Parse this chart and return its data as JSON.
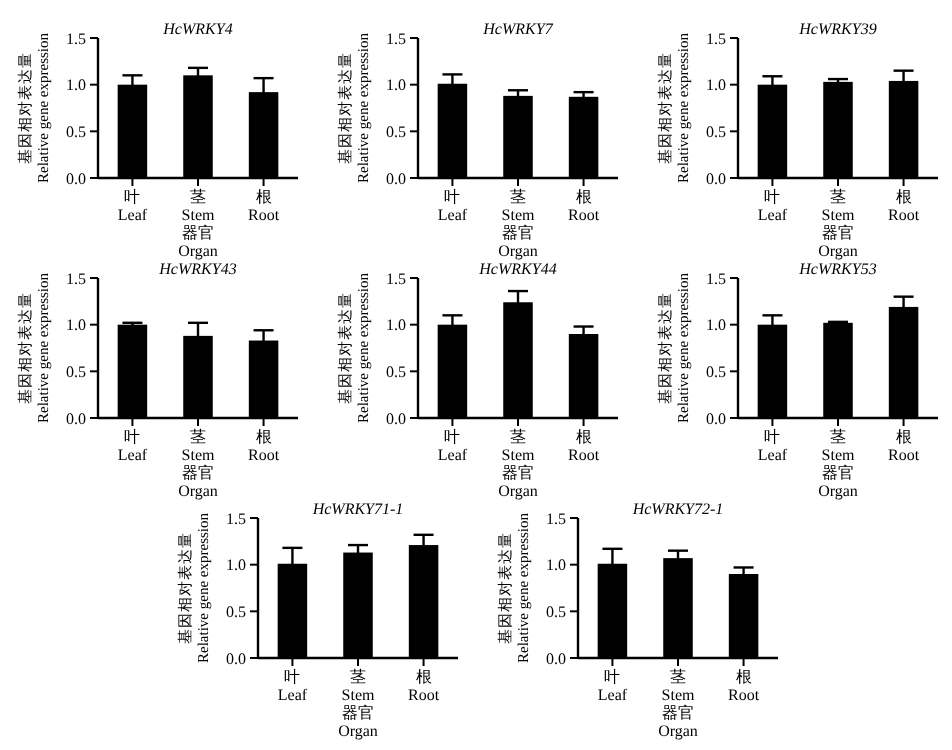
{
  "chart_data": [
    {
      "type": "bar",
      "title": "HcWRKY4",
      "categories": [
        "叶\nLeaf",
        "茎\nStem",
        "根\nRoot"
      ],
      "values": [
        1.0,
        1.1,
        0.92
      ],
      "errors": [
        0.1,
        0.08,
        0.15
      ],
      "color": "#000000",
      "xlabel": "器官\nOrgan",
      "ylabel": "基因相对表达量\nRelative gene expression",
      "ylim": [
        0,
        1.5
      ],
      "yticks": [
        {
          "value": 0,
          "label": "0.0"
        },
        {
          "value": 0.5,
          "label": "0.5"
        },
        {
          "value": 1,
          "label": "1.0"
        },
        {
          "value": 1.5,
          "label": "1.5"
        }
      ]
    },
    {
      "type": "bar",
      "title": "HcWRKY7",
      "categories": [
        "叶\nLeaf",
        "茎\nStem",
        "根\nRoot"
      ],
      "values": [
        1.01,
        0.88,
        0.87
      ],
      "errors": [
        0.1,
        0.06,
        0.05
      ],
      "color": "#000000",
      "xlabel": "器官\nOrgan",
      "ylabel": "基因相对表达量\nRelative gene expression",
      "ylim": [
        0,
        1.5
      ],
      "yticks": [
        {
          "value": 0,
          "label": "0.0"
        },
        {
          "value": 0.5,
          "label": "0.5"
        },
        {
          "value": 1,
          "label": "1.0"
        },
        {
          "value": 1.5,
          "label": "1.5"
        }
      ]
    },
    {
      "type": "bar",
      "title": "HcWRKY39",
      "categories": [
        "叶\nLeaf",
        "茎\nStem",
        "根\nRoot"
      ],
      "values": [
        1.0,
        1.03,
        1.04
      ],
      "errors": [
        0.09,
        0.03,
        0.11
      ],
      "color": "#000000",
      "xlabel": "器官\nOrgan",
      "ylabel": "基因相对表达量\nRelative gene expression",
      "ylim": [
        0,
        1.5
      ],
      "yticks": [
        {
          "value": 0,
          "label": "0.0"
        },
        {
          "value": 0.5,
          "label": "0.5"
        },
        {
          "value": 1,
          "label": "1.0"
        },
        {
          "value": 1.5,
          "label": "1.5"
        }
      ]
    },
    {
      "type": "bar",
      "title": "HcWRKY43",
      "categories": [
        "叶\nLeaf",
        "茎\nStem",
        "根\nRoot"
      ],
      "values": [
        1.0,
        0.88,
        0.83
      ],
      "errors": [
        0.02,
        0.14,
        0.11
      ],
      "color": "#000000",
      "xlabel": "器官\nOrgan",
      "ylabel": "基因相对表达量\nRelative gene expression",
      "ylim": [
        0,
        1.5
      ],
      "yticks": [
        {
          "value": 0,
          "label": "0.0"
        },
        {
          "value": 0.5,
          "label": "0.5"
        },
        {
          "value": 1,
          "label": "1.0"
        },
        {
          "value": 1.5,
          "label": "1.5"
        }
      ]
    },
    {
      "type": "bar",
      "title": "HcWRKY44",
      "categories": [
        "叶\nLeaf",
        "茎\nStem",
        "根\nRoot"
      ],
      "values": [
        1.0,
        1.24,
        0.9
      ],
      "errors": [
        0.1,
        0.12,
        0.08
      ],
      "color": "#000000",
      "xlabel": "器官\nOrgan",
      "ylabel": "基因相对表达量\nRelative gene expression",
      "ylim": [
        0,
        1.5
      ],
      "yticks": [
        {
          "value": 0,
          "label": "0.0"
        },
        {
          "value": 0.5,
          "label": "0.5"
        },
        {
          "value": 1,
          "label": "1.0"
        },
        {
          "value": 1.5,
          "label": "1.5"
        }
      ]
    },
    {
      "type": "bar",
      "title": "HcWRKY53",
      "categories": [
        "叶\nLeaf",
        "茎\nStem",
        "根\nRoot"
      ],
      "values": [
        1.0,
        1.02,
        1.19
      ],
      "errors": [
        0.1,
        0.01,
        0.11
      ],
      "color": "#000000",
      "xlabel": "器官\nOrgan",
      "ylabel": "基因相对表达量\nRelative gene expression",
      "ylim": [
        0,
        1.5
      ],
      "yticks": [
        {
          "value": 0,
          "label": "0.0"
        },
        {
          "value": 0.5,
          "label": "0.5"
        },
        {
          "value": 1,
          "label": "1.0"
        },
        {
          "value": 1.5,
          "label": "1.5"
        }
      ]
    },
    {
      "type": "bar",
      "title": "HcWRKY71-1",
      "categories": [
        "叶\nLeaf",
        "茎\nStem",
        "根\nRoot"
      ],
      "values": [
        1.01,
        1.13,
        1.21
      ],
      "errors": [
        0.17,
        0.08,
        0.11
      ],
      "color": "#000000",
      "xlabel": "器官\nOrgan",
      "ylabel": "基因相对表达量\nRelative gene expression",
      "ylim": [
        0,
        1.5
      ],
      "yticks": [
        {
          "value": 0,
          "label": "0.0"
        },
        {
          "value": 0.5,
          "label": "0.5"
        },
        {
          "value": 1,
          "label": "1.0"
        },
        {
          "value": 1.5,
          "label": "1.5"
        }
      ]
    },
    {
      "type": "bar",
      "title": "HcWRKY72-1",
      "categories": [
        "叶\nLeaf",
        "茎\nStem",
        "根\nRoot"
      ],
      "values": [
        1.01,
        1.07,
        0.9
      ],
      "errors": [
        0.16,
        0.08,
        0.07
      ],
      "color": "#000000",
      "xlabel": "器官\nOrgan",
      "ylabel": "基因相对表达量\nRelative gene expression",
      "ylim": [
        0,
        1.5
      ],
      "yticks": [
        {
          "value": 0,
          "label": "0.0"
        },
        {
          "value": 0.5,
          "label": "0.5"
        },
        {
          "value": 1,
          "label": "1.0"
        },
        {
          "value": 1.5,
          "label": "1.5"
        }
      ]
    }
  ]
}
